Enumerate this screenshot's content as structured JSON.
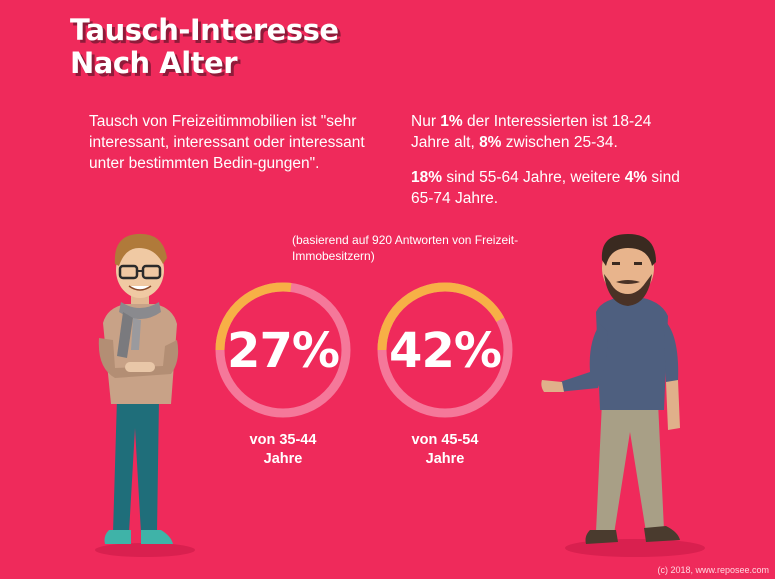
{
  "title": {
    "line1": "Tausch-Interesse",
    "line2": "Nach Alter"
  },
  "intro_left": "Tausch von Freizeitimmobilien ist \"sehr interessant, interessant oder interessant unter bestimmten Bedin-gungen\".",
  "intro_right": {
    "p1": {
      "t1": "Nur ",
      "b1": "1%",
      "t2": " der Interessierten ist 18-24 Jahre alt, ",
      "b2": "8%",
      "t3": " zwischen 25-34."
    },
    "p2": {
      "b1": "18%",
      "t1": " sind 55-64 Jahre, weitere ",
      "b2": "4%",
      "t2": " sind 65-74 Jahre."
    }
  },
  "note": "(basierend auf 920 Antworten von Freizeit-Immobesitzern)",
  "chart_data": {
    "type": "pie",
    "categories": [
      "von 35-44 Jahre",
      "von 45-54 Jahre"
    ],
    "values": [
      27,
      42
    ],
    "labels": [
      "27%",
      "42%"
    ],
    "captions": [
      {
        "line1": "von 35-44",
        "line2": "Jahre"
      },
      {
        "line1": "von 45-54",
        "line2": "Jahre"
      }
    ],
    "unit": "%",
    "max": 100
  },
  "colors": {
    "background": "#EF2A5B",
    "ring_track": "#F5789A",
    "ring_fill": "#F7B046",
    "text": "#FFFFFF"
  },
  "footer": "(c) 2018, www.reposee.com"
}
